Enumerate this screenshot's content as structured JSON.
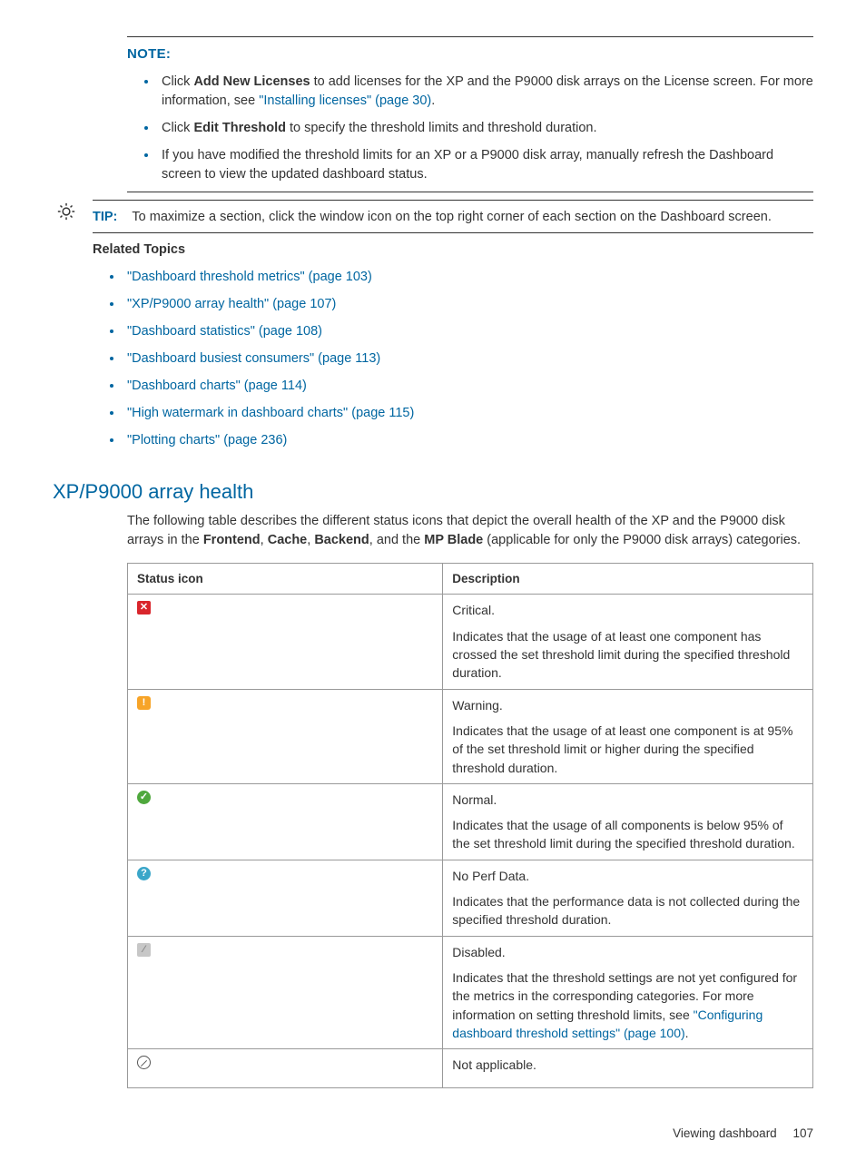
{
  "note": {
    "label": "NOTE:",
    "items": [
      {
        "pre": "Click ",
        "bold1": "Add New Licenses",
        "mid": " to add licenses for the XP and the P9000 disk arrays on the License screen. For more information, see ",
        "link": "\"Installing licenses\" (page 30)",
        "post": "."
      },
      {
        "pre": "Click ",
        "bold1": "Edit Threshold",
        "mid": " to specify the threshold limits and threshold duration.",
        "link": "",
        "post": ""
      },
      {
        "pre": "If you have modified the threshold limits for an XP or a P9000 disk array, manually refresh the Dashboard screen to view the updated dashboard status.",
        "bold1": "",
        "mid": "",
        "link": "",
        "post": ""
      }
    ]
  },
  "tip": {
    "label": "TIP:",
    "text": "To maximize a section, click the window icon on the top right corner of each section on the Dashboard screen."
  },
  "related": {
    "heading": "Related Topics",
    "items": [
      "\"Dashboard threshold metrics\" (page 103)",
      "\"XP/P9000 array health\" (page 107)",
      "\"Dashboard statistics\" (page 108)",
      "\"Dashboard busiest consumers\" (page 113)",
      "\"Dashboard charts\" (page 114)",
      "\"High watermark in dashboard charts\" (page 115)",
      "\"Plotting charts\" (page 236)"
    ]
  },
  "section": {
    "heading": "XP/P9000 array health",
    "intro_pre": "The following table describes the different status icons that depict the overall health of the XP and the P9000 disk arrays in the ",
    "b1": "Frontend",
    "s1": ", ",
    "b2": "Cache",
    "s2": ", ",
    "b3": "Backend",
    "s3": ", and the ",
    "b4": "MP Blade",
    "intro_post": " (applicable for only the P9000 disk arrays) categories."
  },
  "table": {
    "header_icon": "Status icon",
    "header_desc": "Description",
    "rows": [
      {
        "icon_name": "critical-icon",
        "glyph": "✕",
        "glyph_class": "g-critical",
        "desc_first": "Critical.",
        "desc_rest": "Indicates that the usage of at least one component has crossed the set threshold limit during the specified threshold duration.",
        "link": "",
        "post": ""
      },
      {
        "icon_name": "warning-icon",
        "glyph": "!",
        "glyph_class": "g-warning",
        "desc_first": "Warning.",
        "desc_rest": "Indicates that the usage of at least one component is at 95% of the set threshold limit or higher during the specified threshold duration.",
        "link": "",
        "post": ""
      },
      {
        "icon_name": "normal-icon",
        "glyph": "✓",
        "glyph_class": "g-normal",
        "desc_first": "Normal.",
        "desc_rest": "Indicates that the usage of all components is below 95% of the set threshold limit during the specified threshold duration.",
        "link": "",
        "post": ""
      },
      {
        "icon_name": "noperf-icon",
        "glyph": "?",
        "glyph_class": "g-noperf",
        "desc_first": "No Perf Data.",
        "desc_rest": "Indicates that the performance data is not collected during the specified threshold duration.",
        "link": "",
        "post": ""
      },
      {
        "icon_name": "disabled-icon",
        "glyph": "⁄",
        "glyph_class": "g-disabled",
        "desc_first": "Disabled.",
        "desc_rest": "Indicates that the threshold settings are not yet configured for the metrics in the corresponding categories. For more information on setting threshold limits, see ",
        "link": "\"Configuring dashboard threshold settings\" (page 100)",
        "post": "."
      },
      {
        "icon_name": "na-icon",
        "glyph": "",
        "glyph_class": "g-na",
        "desc_first": "Not applicable.",
        "desc_rest": "",
        "link": "",
        "post": ""
      }
    ]
  },
  "footer": {
    "text": "Viewing dashboard",
    "page": "107"
  },
  "colors": {
    "accent": "#0066a1",
    "text": "#333333",
    "border": "#999999",
    "critical": "#d9262c",
    "warning": "#f7a428",
    "normal": "#4fa83d",
    "noperf": "#3aa6c9",
    "disabled": "#c7c7c7"
  }
}
